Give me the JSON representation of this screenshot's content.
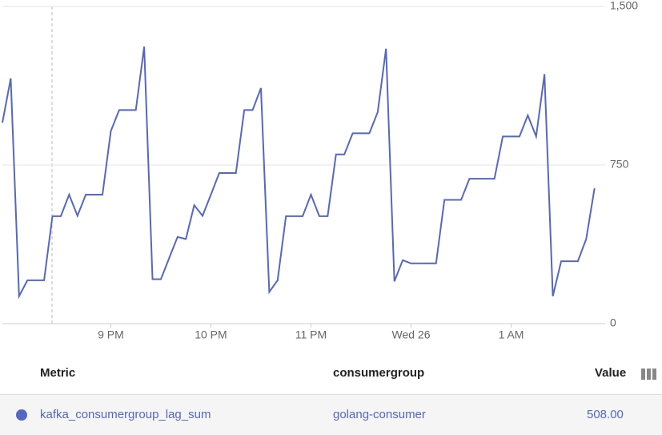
{
  "chart_data": {
    "type": "line",
    "values": [
      950,
      1160,
      130,
      205,
      205,
      205,
      508,
      508,
      610,
      510,
      610,
      610,
      610,
      910,
      1010,
      1010,
      1010,
      1310,
      210,
      210,
      310,
      410,
      400,
      560,
      510,
      610,
      712,
      712,
      712,
      1010,
      1010,
      1114,
      150,
      205,
      508,
      508,
      508,
      610,
      508,
      508,
      800,
      800,
      900,
      900,
      900,
      1000,
      1300,
      200,
      300,
      285,
      285,
      285,
      285,
      585,
      585,
      585,
      685,
      685,
      685,
      685,
      885,
      885,
      885,
      985,
      885,
      1180,
      130,
      295,
      295,
      295,
      400,
      640
    ],
    "color": "#5468c0",
    "xlim": [
      0,
      71.7
    ],
    "xticks": [
      {
        "value": 13,
        "label": "9 PM"
      },
      {
        "value": 25,
        "label": "10 PM"
      },
      {
        "value": 37,
        "label": "11 PM"
      },
      {
        "value": 49,
        "label": "Wed 26"
      },
      {
        "value": 61,
        "label": "1 AM"
      }
    ],
    "ylim": [
      0,
      1500
    ],
    "yticks": [
      0,
      750,
      {
        "value": 1500,
        "label": "1,500"
      }
    ],
    "grid": true
  },
  "table": {
    "headers": [
      "Metric",
      "consumergroup",
      "Value"
    ],
    "rows": [
      [
        "kafka_consumergroup_lag_sum",
        "golang-consumer",
        "508.00"
      ]
    ]
  }
}
